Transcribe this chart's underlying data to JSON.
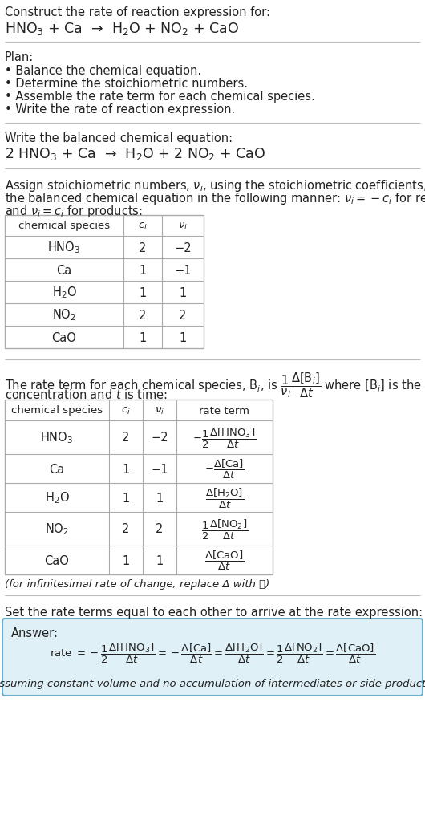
{
  "bg_color": "#ffffff",
  "text_color": "#222222",
  "title_line1": "Construct the rate of reaction expression for:",
  "reaction_unbalanced": "HNO$_3$ + Ca  →  H$_2$O + NO$_2$ + CaO",
  "plan_header": "Plan:",
  "plan_items": [
    "• Balance the chemical equation.",
    "• Determine the stoichiometric numbers.",
    "• Assemble the rate term for each chemical species.",
    "• Write the rate of reaction expression."
  ],
  "balanced_header": "Write the balanced chemical equation:",
  "reaction_balanced": "2 HNO$_3$ + Ca  →  H$_2$O + 2 NO$_2$ + CaO",
  "stoich_intro1": "Assign stoichiometric numbers, $\\nu_i$, using the stoichiometric coefficients, $c_i$, from",
  "stoich_intro2": "the balanced chemical equation in the following manner: $\\nu_i = -c_i$ for reactants",
  "stoich_intro3": "and $\\nu_i = c_i$ for products:",
  "table1_col_headers": [
    "chemical species",
    "$c_i$",
    "$\\nu_i$"
  ],
  "table1_species": [
    "HNO$_3$",
    "Ca",
    "H$_2$O",
    "NO$_2$",
    "CaO"
  ],
  "table1_ci": [
    "2",
    "1",
    "1",
    "2",
    "1"
  ],
  "table1_ni": [
    "−2",
    "−1",
    "1",
    "2",
    "1"
  ],
  "rate_intro1": "The rate term for each chemical species, B$_i$, is $\\dfrac{1}{\\nu_i}\\dfrac{\\Delta[\\mathrm{B}_i]}{\\Delta t}$ where [B$_i$] is the amount",
  "rate_intro2": "concentration and $t$ is time:",
  "table2_col_headers": [
    "chemical species",
    "$c_i$",
    "$\\nu_i$",
    "rate term"
  ],
  "table2_species": [
    "HNO$_3$",
    "Ca",
    "H$_2$O",
    "NO$_2$",
    "CaO"
  ],
  "table2_ci": [
    "2",
    "1",
    "1",
    "2",
    "1"
  ],
  "table2_ni": [
    "−2",
    "−1",
    "1",
    "2",
    "1"
  ],
  "table2_rate": [
    "$-\\dfrac{1}{2}\\dfrac{\\Delta[\\mathrm{HNO_3}]}{\\Delta t}$",
    "$-\\dfrac{\\Delta[\\mathrm{Ca}]}{\\Delta t}$",
    "$\\dfrac{\\Delta[\\mathrm{H_2O}]}{\\Delta t}$",
    "$\\dfrac{1}{2}\\dfrac{\\Delta[\\mathrm{NO_2}]}{\\Delta t}$",
    "$\\dfrac{\\Delta[\\mathrm{CaO}]}{\\Delta t}$"
  ],
  "infinitesimal_note": "(for infinitesimal rate of change, replace Δ with 𝑑)",
  "set_equal_text": "Set the rate terms equal to each other to arrive at the rate expression:",
  "answer_box_color": "#dff0f7",
  "answer_box_border": "#6aaecc",
  "answer_label": "Answer:",
  "answer_rate": "rate $= -\\dfrac{1}{2}\\dfrac{\\Delta[\\mathrm{HNO_3}]}{\\Delta t} = -\\dfrac{\\Delta[\\mathrm{Ca}]}{\\Delta t} = \\dfrac{\\Delta[\\mathrm{H_2O}]}{\\Delta t} = \\dfrac{1}{2}\\dfrac{\\Delta[\\mathrm{NO_2}]}{\\Delta t} = \\dfrac{\\Delta[\\mathrm{CaO}]}{\\Delta t}$",
  "assuming_note": "(assuming constant volume and no accumulation of intermediates or side products)"
}
